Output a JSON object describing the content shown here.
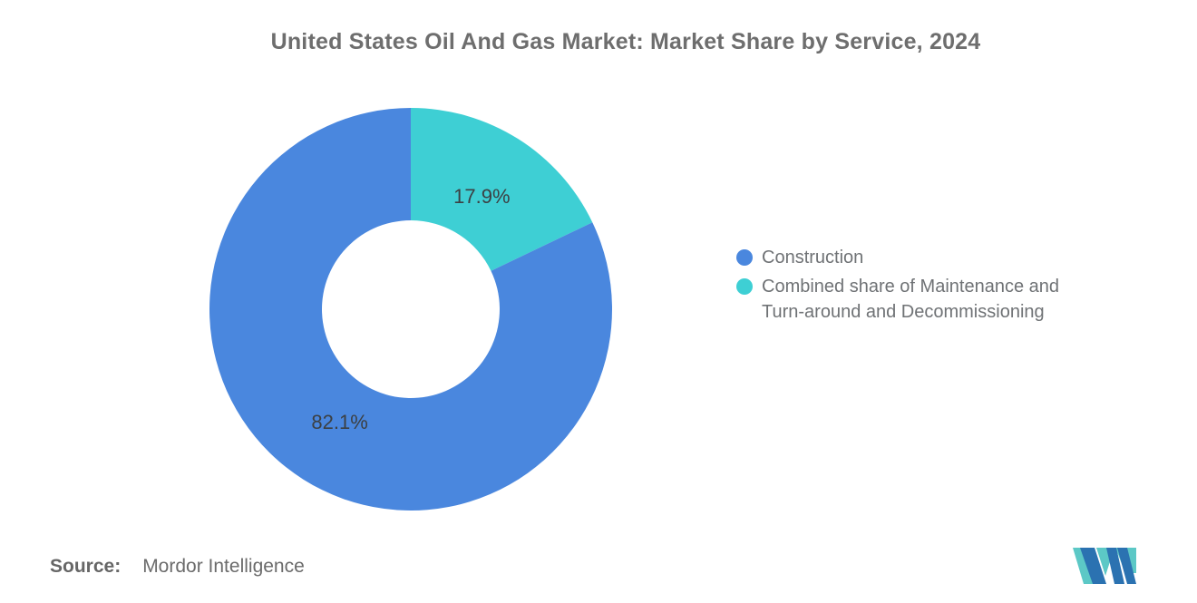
{
  "title": "United States Oil And Gas Market: Market Share by Service, 2024",
  "chart_data": {
    "type": "pie",
    "subtype": "donut",
    "title": "United States Oil And Gas Market: Market Share by Service, 2024",
    "unit": "%",
    "series": [
      {
        "name": "Construction",
        "value": 82.1,
        "color": "#4A87DE"
      },
      {
        "name": "Combined share of Maintenance and Turn-around and Decommissioning",
        "value": 17.9,
        "color": "#3ECFD4"
      }
    ],
    "data_labels": [
      "82.1%",
      "17.9%"
    ],
    "legend_position": "right",
    "donut_hole_ratio": 0.44,
    "start_angle": "top",
    "grid": "off"
  },
  "footer": {
    "source_label": "Source:",
    "source_value": "Mordor Intelligence"
  },
  "logo": {
    "name": "mordor-intelligence-logo",
    "blue": "#2B72B1",
    "teal": "#5CC8C6"
  },
  "colors": {
    "background": "#FFFFFF",
    "title_text": "#6E6E6E",
    "slice_label_text": "#3C4043",
    "legend_text": "#6F7275",
    "source_text": "#6B6B6B"
  }
}
